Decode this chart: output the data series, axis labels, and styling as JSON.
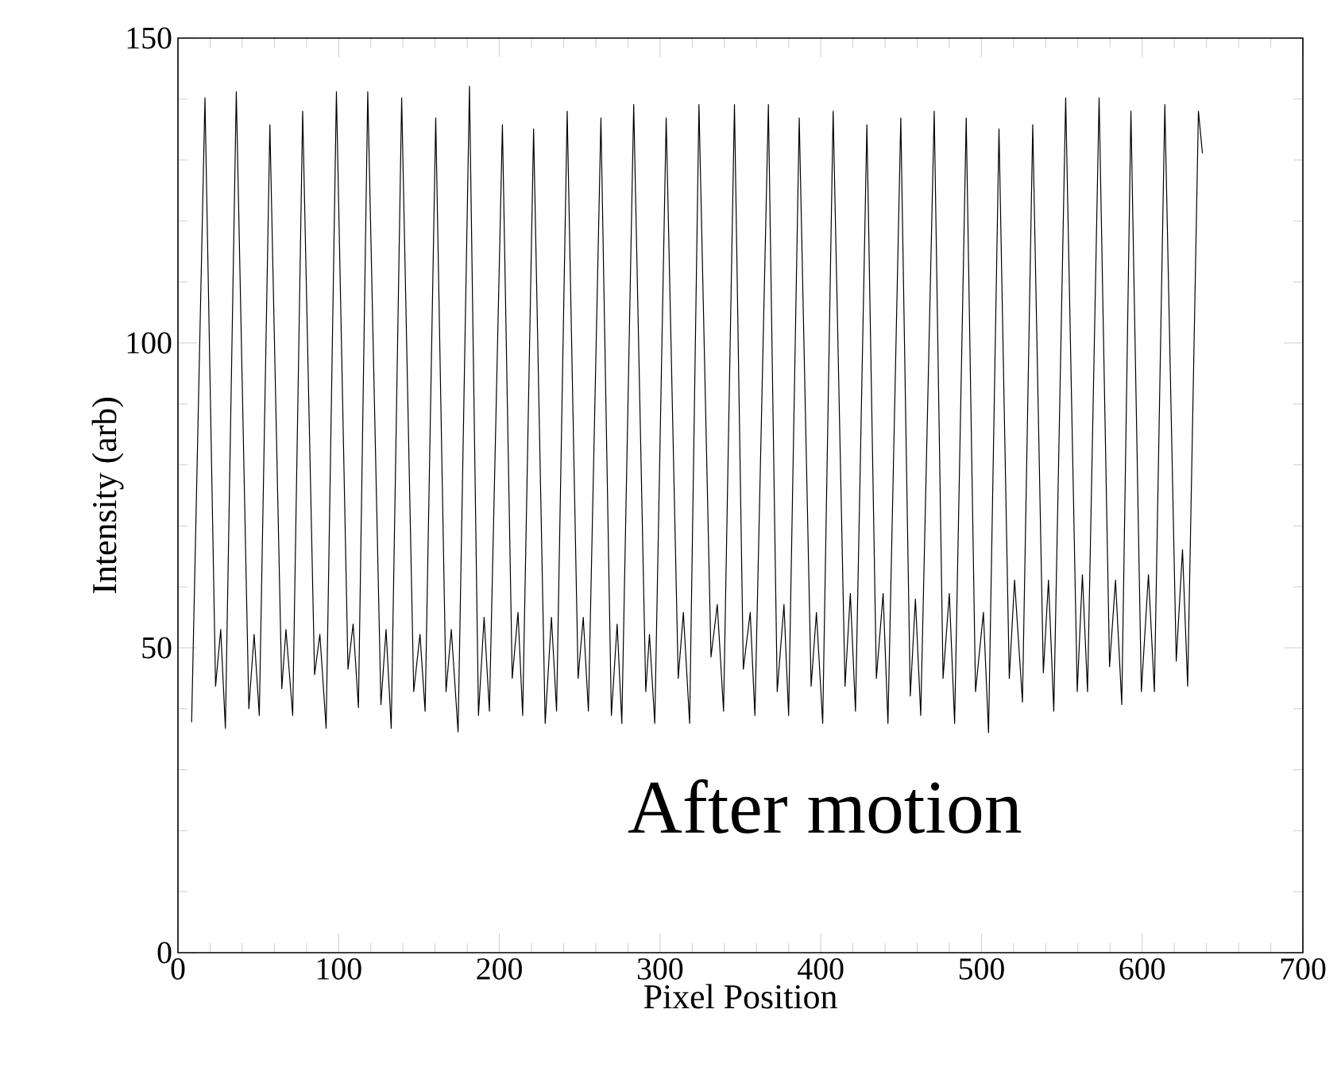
{
  "chart_data": {
    "type": "line",
    "xlabel": "Pixel Position",
    "ylabel": "Intensity (arb)",
    "annotations": [
      "After motion"
    ],
    "xlim": [
      0,
      700
    ],
    "ylim": [
      0,
      150
    ],
    "xticks": [
      0,
      100,
      200,
      300,
      400,
      500,
      600,
      700
    ],
    "yticks": [
      0,
      50,
      100,
      150
    ],
    "color": "#000000",
    "x": [
      8.5,
      16.8,
      23.4,
      26.6,
      29.5,
      36.3,
      44.1,
      47.4,
      50.6,
      57.2,
      64.6,
      67.2,
      71.4,
      77.6,
      85,
      88.3,
      92.2,
      98.6,
      105.8,
      109,
      112.3,
      118.1,
      126.3,
      129.5,
      132.7,
      139.2,
      146.7,
      150.6,
      153.8,
      160.4,
      166.8,
      170.1,
      174.3,
      181.4,
      187,
      190.5,
      193.8,
      201.9,
      208,
      211.6,
      214.5,
      221.3,
      228.5,
      232.4,
      235.6,
      242.2,
      249,
      252.2,
      255.4,
      263.2,
      269.7,
      273.3,
      276.2,
      283.6,
      291.1,
      293.4,
      296.7,
      303.8,
      311.3,
      314.5,
      318.4,
      324.2,
      331.7,
      335.6,
      339.5,
      346.3,
      351.8,
      356.1,
      359,
      367.4,
      372.9,
      377.1,
      380,
      386.6,
      394,
      397.3,
      401.2,
      407.7,
      415.1,
      418.4,
      421.6,
      428.7,
      434.6,
      438.8,
      441.8,
      449.8,
      455.7,
      458.9,
      462.2,
      470.6,
      476.1,
      480,
      483.3,
      490.5,
      496.3,
      501.2,
      504.4,
      510.9,
      517.3,
      520.6,
      525.5,
      531.9,
      538.5,
      541.7,
      545,
      552.4,
      559.6,
      562.8,
      566,
      573.2,
      579.7,
      583.4,
      587.3,
      593,
      599.5,
      603.9,
      607.6,
      614.1,
      621.2,
      625.1,
      628.3,
      635,
      637.5
    ],
    "values": [
      37.8,
      140.2,
      43.7,
      53,
      36.8,
      141.2,
      40,
      52.2,
      38.9,
      135.8,
      43.3,
      53,
      38.9,
      138,
      45.6,
      52.2,
      36.8,
      141.2,
      46.5,
      53.9,
      40.2,
      141.2,
      40.7,
      53,
      36.8,
      140.2,
      42.8,
      52.2,
      39.6,
      136.9,
      42.8,
      53,
      36.2,
      142.1,
      38.9,
      55,
      39.6,
      135.8,
      45,
      55.8,
      38.9,
      135.1,
      37.6,
      55,
      39.6,
      138,
      45,
      55,
      39.6,
      136.9,
      38.9,
      53.9,
      37.6,
      139.1,
      42.8,
      52.2,
      37.6,
      136.9,
      45,
      55.8,
      37.6,
      139.1,
      48.5,
      57.1,
      39.6,
      139.1,
      46.5,
      55.8,
      38.9,
      139.1,
      42.8,
      57.1,
      38.9,
      136.9,
      43.7,
      55.8,
      37.6,
      138,
      43.7,
      58.9,
      39.6,
      135.8,
      45,
      58.9,
      37.6,
      136.9,
      42.1,
      58,
      38.9,
      138,
      45,
      58.9,
      37.6,
      136.9,
      42.8,
      55.8,
      36.1,
      135.1,
      45,
      61.1,
      41.1,
      135.8,
      45.9,
      61.1,
      39.6,
      140.2,
      42.8,
      62,
      42.8,
      140.2,
      46.9,
      61.1,
      40.7,
      138,
      42.8,
      62,
      42.8,
      139.1,
      47.8,
      66.1,
      43.7,
      138,
      131.1
    ]
  }
}
